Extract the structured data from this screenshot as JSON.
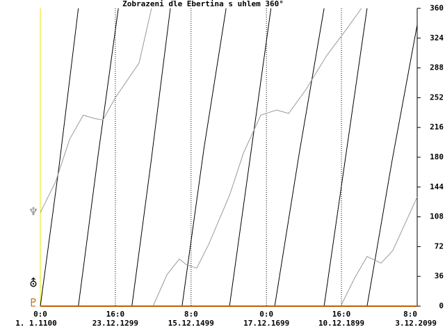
{
  "chart_data": {
    "type": "line",
    "title": "Zobrazeni dle Ebertina s uhlem  360°",
    "xlim": [
      1100,
      2100
    ],
    "ylim": [
      0,
      360
    ],
    "yticks": [
      0,
      36,
      72,
      108,
      144,
      180,
      216,
      252,
      288,
      324,
      360
    ],
    "xticks": [
      {
        "value": 1100,
        "label": "0:0"
      },
      {
        "value": 1299,
        "label": "16:0"
      },
      {
        "value": 1500,
        "label": "8:0"
      },
      {
        "value": 1700,
        "label": "0:0"
      },
      {
        "value": 1899,
        "label": "16:0"
      },
      {
        "value": 2100,
        "label": "8:0"
      }
    ],
    "xtick_dates": [
      "1. 1.1100",
      "23.12.1299",
      "15.12.1499",
      "17.12.1699",
      "10.12.1899",
      "3.12.2099"
    ],
    "grid": true,
    "series": [
      {
        "color": "#000000",
        "x": [
          1100,
          1150,
          1201,
          1201,
          1201,
          1254,
          1307,
          1307,
          1343,
          1394,
          1445,
          1445,
          1476,
          1534,
          1593,
          1593,
          1602,
          1657,
          1712,
          1712,
          1722,
          1787,
          1853,
          1853,
          1853,
          1910,
          1967,
          1967,
          1967,
          2033,
          2100
        ],
        "values": [
          0,
          170,
          360,
          null,
          0,
          185,
          360,
          null,
          0,
          175,
          360,
          null,
          0,
          190,
          360,
          null,
          0,
          180,
          360,
          null,
          0,
          185,
          360,
          null,
          0,
          180,
          360,
          null,
          0,
          175,
          340
        ]
      },
      {
        "color": "#999999",
        "x": [
          1100,
          1141,
          1178,
          1214,
          1242,
          1266,
          1299,
          1362,
          1395,
          1395,
          1399,
          1436,
          1469,
          1488,
          1515,
          1547,
          1602,
          1639,
          1685,
          1727,
          1759,
          1805,
          1860,
          1916,
          1952,
          1952,
          1897,
          1934,
          1967,
          2004,
          2035,
          2100
        ],
        "values": [
          113,
          151,
          202,
          231,
          227,
          225,
          252,
          294,
          360,
          null,
          0,
          38,
          57,
          50,
          46,
          75,
          134,
          185,
          231,
          237,
          233,
          262,
          303,
          337,
          360,
          null,
          0,
          34,
          60,
          52,
          67,
          132
        ]
      }
    ],
    "markers": [
      {
        "label": "♆",
        "value": 110,
        "color": "#888888"
      },
      {
        "label": "⛢",
        "value": 24,
        "color": "#000000"
      },
      {
        "label": "♇",
        "value": 0,
        "color": "#c06000"
      }
    ]
  }
}
